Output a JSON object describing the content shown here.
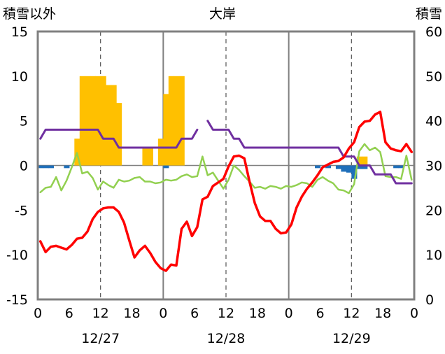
{
  "chart_data": {
    "type": "bar+line",
    "title": "大岸",
    "left_axis_label": "積雪以外",
    "right_axis_label": "積雪",
    "x_tick_labels": [
      "0",
      "6",
      "12",
      "18",
      "0",
      "6",
      "12",
      "18",
      "0",
      "6",
      "12",
      "18",
      "0"
    ],
    "date_labels": [
      "12/27",
      "12/28",
      "12/29"
    ],
    "left_ylim": [
      -15,
      15
    ],
    "left_ticks": [
      15,
      10,
      5,
      0,
      -5,
      -10,
      -15
    ],
    "right_ylim": [
      0,
      60
    ],
    "right_ticks": [
      60,
      50,
      40,
      30,
      20,
      10,
      0
    ],
    "grid": "dashed vertical at 12h, solid vertical at day boundaries",
    "colors": {
      "snowfall": "#ffc000",
      "precip": "#1f6fba",
      "temperature": "#ff0000",
      "wind": "#92d050",
      "snow_depth": "#7030a0",
      "frame": "#808080"
    },
    "snowfall_bars": {
      "hours": [
        7,
        8,
        9,
        10,
        11,
        12,
        13,
        14,
        15,
        20,
        21,
        23,
        24,
        25,
        26,
        27,
        61,
        62
      ],
      "values": [
        3,
        10,
        10,
        10,
        10,
        10,
        9,
        9,
        7,
        2,
        2,
        3,
        8,
        10,
        10,
        10,
        1,
        1
      ]
    },
    "precip_bars": {
      "hours": [
        0,
        1,
        2,
        5,
        24,
        53,
        55,
        57,
        58,
        59,
        60,
        61,
        62,
        68,
        69
      ],
      "values": [
        -0.3,
        -0.3,
        -0.3,
        -0.3,
        -0.3,
        -0.3,
        -0.3,
        -0.4,
        -0.7,
        -0.8,
        -1.5,
        -0.4,
        -0.4,
        -0.3,
        -0.3
      ]
    },
    "temperature_series": {
      "hours": [
        0,
        1,
        2,
        3,
        4,
        5,
        6,
        7,
        8,
        9,
        10,
        11,
        12,
        13,
        14,
        15,
        16,
        17,
        18,
        19,
        20,
        21,
        22,
        23,
        24,
        25,
        26,
        27,
        28,
        29,
        30,
        31,
        32,
        33,
        34,
        35,
        36,
        37,
        38,
        39,
        40,
        41,
        42,
        43,
        44,
        45,
        46,
        47,
        48,
        49,
        50,
        51,
        52,
        53,
        54,
        55,
        56,
        57,
        58,
        59,
        60,
        61,
        62,
        63,
        64,
        65,
        66,
        67,
        68,
        69,
        70,
        71
      ],
      "values": [
        -8.5,
        -9.7,
        -9.1,
        -9.0,
        -9.2,
        -9.4,
        -8.9,
        -8.2,
        -8.1,
        -7.4,
        -6.0,
        -5.2,
        -4.8,
        -4.7,
        -4.7,
        -5.2,
        -6.4,
        -8.4,
        -10.3,
        -9.5,
        -9.0,
        -9.8,
        -10.8,
        -11.5,
        -11.8,
        -11.1,
        -11.2,
        -7.1,
        -6.3,
        -7.9,
        -6.9,
        -3.8,
        -3.5,
        -2.3,
        -1.9,
        -1.5,
        -0.1,
        1.0,
        1.1,
        0.8,
        -1.8,
        -4.2,
        -5.7,
        -6.2,
        -6.2,
        -7.1,
        -7.6,
        -7.5,
        -6.6,
        -4.7,
        -3.5,
        -2.6,
        -1.9,
        -1.1,
        -0.2,
        0.1,
        0.4,
        0.5,
        0.9,
        1.9,
        2.6,
        4.3,
        4.9,
        5.0,
        5.7,
        6.0,
        2.6,
        1.9,
        1.7,
        1.6,
        2.4,
        1.5
      ]
    },
    "wind_series": {
      "hours": [
        0,
        1,
        2,
        3,
        4,
        5,
        6,
        7,
        8,
        9,
        10,
        11,
        12,
        13,
        14,
        15,
        16,
        17,
        18,
        19,
        20,
        21,
        22,
        23,
        24,
        25,
        26,
        27,
        28,
        29,
        30,
        31,
        32,
        33,
        34,
        35,
        36,
        37,
        38,
        39,
        40,
        41,
        42,
        43,
        44,
        45,
        46,
        47,
        48,
        49,
        50,
        51,
        52,
        53,
        54,
        55,
        56,
        57,
        58,
        59,
        60,
        61,
        62,
        63,
        64,
        65,
        66,
        67,
        68,
        69,
        70,
        71
      ],
      "values": [
        -3.0,
        -2.5,
        -2.4,
        -1.3,
        -2.8,
        -1.7,
        -0.2,
        1.4,
        -0.9,
        -0.7,
        -1.4,
        -2.7,
        -1.8,
        -2.2,
        -2.5,
        -1.6,
        -1.8,
        -1.7,
        -1.4,
        -1.3,
        -1.8,
        -1.8,
        -2.0,
        -1.9,
        -1.6,
        -1.7,
        -1.6,
        -1.2,
        -1.0,
        -1.3,
        -1.2,
        1.0,
        -1.1,
        -0.8,
        -1.7,
        -2.6,
        -1.6,
        0.0,
        -0.5,
        -1.2,
        -1.8,
        -2.5,
        -2.4,
        -2.6,
        -2.3,
        -2.4,
        -2.6,
        -2.3,
        -2.4,
        -2.2,
        -1.9,
        -2.0,
        -2.4,
        -1.6,
        -1.3,
        -1.7,
        -2.0,
        -2.7,
        -2.8,
        -3.1,
        -2.1,
        1.6,
        2.4,
        1.7,
        2.0,
        1.5,
        -1.2,
        -1.3,
        -1.3,
        -1.5,
        1.1,
        -1.6
      ]
    },
    "snow_depth_series": {
      "hours": [
        0,
        1,
        2,
        3,
        4,
        5,
        6,
        7,
        8,
        9,
        10,
        11,
        12,
        13,
        14,
        15,
        16,
        17,
        18,
        19,
        20,
        21,
        22,
        23,
        24,
        25,
        26,
        27,
        28,
        29,
        30,
        null,
        32,
        33,
        34,
        35,
        36,
        37,
        38,
        39,
        40,
        41,
        42,
        43,
        44,
        45,
        46,
        47,
        48,
        49,
        50,
        51,
        52,
        53,
        54,
        55,
        56,
        57,
        58,
        59,
        60,
        61,
        62,
        63,
        64,
        65,
        66,
        67,
        68,
        69,
        70,
        71
      ],
      "values": [
        3,
        4,
        4,
        4,
        4,
        4,
        4,
        4,
        4,
        4,
        4,
        4,
        3,
        3,
        3,
        2,
        2,
        2,
        2,
        2,
        2,
        2,
        2,
        2,
        2,
        2,
        2,
        3,
        3,
        3,
        4,
        null,
        5,
        4,
        4,
        4,
        4,
        3,
        3,
        2,
        2,
        2,
        2,
        2,
        2,
        2,
        2,
        2,
        2,
        2,
        2,
        2,
        2,
        2,
        2,
        2,
        2,
        2,
        1,
        1,
        1,
        0,
        0,
        0,
        -1,
        -1,
        -1,
        -1,
        -2,
        -2,
        -2,
        -2
      ]
    }
  }
}
